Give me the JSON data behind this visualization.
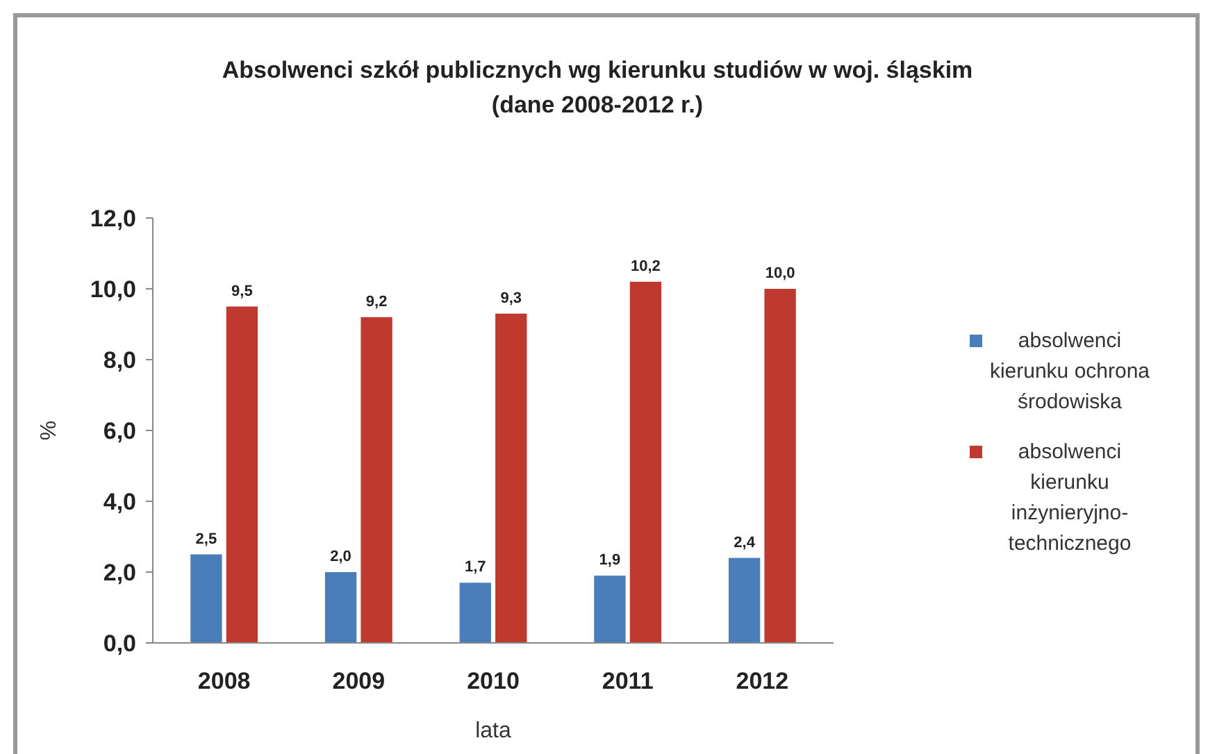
{
  "chart_data": {
    "type": "bar",
    "title": "Absolwenci szkół publicznych wg kierunku studiów w woj. śląskim",
    "subtitle": "(dane 2008-2012 r.)",
    "xlabel": "lata",
    "ylabel": "%",
    "categories": [
      "2008",
      "2009",
      "2010",
      "2011",
      "2012"
    ],
    "series": [
      {
        "name": "absolwenci kierunku ochrona środowiska",
        "color": "#4a7ebb",
        "values": [
          2.5,
          2.0,
          1.7,
          1.9,
          2.4
        ],
        "value_labels": [
          "2,5",
          "2,0",
          "1,7",
          "1,9",
          "2,4"
        ]
      },
      {
        "name": "absolwenci kierunku inżynieryjno-technicznego",
        "color": "#c0392f",
        "values": [
          9.5,
          9.2,
          9.3,
          10.2,
          10.0
        ],
        "value_labels": [
          "9,5",
          "9,2",
          "9,3",
          "10,2",
          "10,0"
        ]
      }
    ],
    "ylim": [
      0,
      12
    ],
    "yticks": [
      {
        "value": 0,
        "label": "0,0"
      },
      {
        "value": 2,
        "label": "2,0"
      },
      {
        "value": 4,
        "label": "4,0"
      },
      {
        "value": 6,
        "label": "6,0"
      },
      {
        "value": 8,
        "label": "8,0"
      },
      {
        "value": 10,
        "label": "10,0"
      },
      {
        "value": 12,
        "label": "12,0"
      }
    ],
    "grid": false,
    "legend": "right"
  }
}
